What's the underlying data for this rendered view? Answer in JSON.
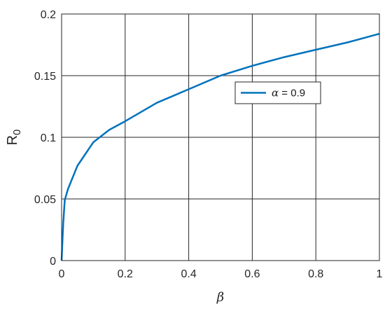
{
  "chart_data": {
    "type": "line",
    "title": "",
    "xlabel": "β",
    "ylabel": {
      "main": "R",
      "sub": "0"
    },
    "xlim": [
      0,
      1
    ],
    "ylim": [
      0,
      0.2
    ],
    "xticks": [
      0,
      0.2,
      0.4,
      0.6,
      0.8,
      1
    ],
    "yticks": [
      0,
      0.05,
      0.1,
      0.15,
      0.2
    ],
    "xtick_labels": [
      "0",
      "0.2",
      "0.4",
      "0.6",
      "0.8",
      "1"
    ],
    "ytick_labels": [
      "0",
      "0.05",
      "0.1",
      "0.15",
      "0.2"
    ],
    "grid": true,
    "legend_position": "upper-right, inside",
    "series": [
      {
        "name": "α = 0.9",
        "legend_parts": {
          "symbol": "α",
          "rest": " = 0.9"
        },
        "color": "#0072BD",
        "x": [
          0,
          0.005,
          0.01,
          0.02,
          0.05,
          0.1,
          0.15,
          0.2,
          0.3,
          0.4,
          0.5,
          0.6,
          0.7,
          0.8,
          0.9,
          1.0
        ],
        "y": [
          0,
          0.03,
          0.049,
          0.058,
          0.077,
          0.096,
          0.106,
          0.113,
          0.128,
          0.139,
          0.15,
          0.158,
          0.165,
          0.171,
          0.177,
          0.184
        ]
      }
    ]
  }
}
